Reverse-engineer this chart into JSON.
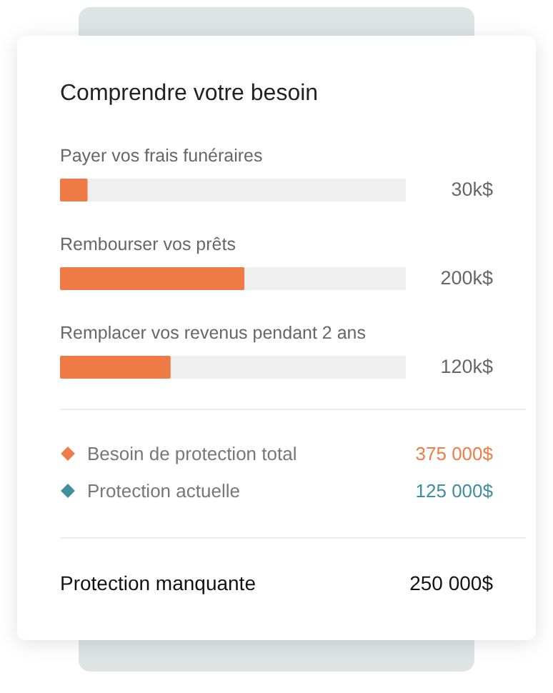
{
  "chart_data": {
    "type": "bar",
    "orientation": "horizontal",
    "title": "Comprendre votre besoin",
    "categories": [
      "Payer vos frais funéraires",
      "Rembourser vos prêts",
      "Remplacer vos revenus pendant 2 ans"
    ],
    "values": [
      30,
      200,
      120
    ],
    "color": "#ee7a45",
    "value_labels": [
      "30k$",
      "200k$",
      "120k$"
    ],
    "xlim": [
      0,
      375
    ],
    "bands": [
      {
        "axis": "x",
        "from": 0,
        "to": 375,
        "color": "#efefef"
      }
    ],
    "annotations": [
      "Besoin de protection total",
      "375 000$",
      "Protection actuelle",
      "125 000$",
      "Protection manquante",
      "250 000$"
    ]
  }
}
